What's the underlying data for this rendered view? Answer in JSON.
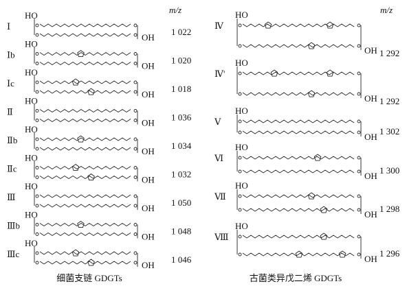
{
  "left": {
    "header": "m/z",
    "caption": "细菌支链 GDGTs",
    "items": [
      {
        "label": "Ⅰ",
        "ho": "HO",
        "oh": "OH",
        "mz": "1 022"
      },
      {
        "label": "Ⅰb",
        "ho": "HO",
        "oh": "OH",
        "mz": "1 020"
      },
      {
        "label": "Ⅰc",
        "ho": "HO",
        "oh": "OH",
        "mz": "1 018"
      },
      {
        "label": "Ⅱ",
        "ho": "HO",
        "oh": "OH",
        "mz": "1 036"
      },
      {
        "label": "Ⅱb",
        "ho": "HO",
        "oh": "OH",
        "mz": "1 034"
      },
      {
        "label": "Ⅱc",
        "ho": "HO",
        "oh": "OH",
        "mz": "1 032"
      },
      {
        "label": "Ⅲ",
        "ho": "HO",
        "oh": "OH",
        "mz": "1 050"
      },
      {
        "label": "Ⅲb",
        "ho": "HO",
        "oh": "OH",
        "mz": "1 048"
      },
      {
        "label": "Ⅲc",
        "ho": "HO",
        "oh": "OH",
        "mz": "1 046"
      }
    ]
  },
  "right": {
    "header": "m/z",
    "caption": "古菌类异戊二烯 GDGTs",
    "items": [
      {
        "label": "Ⅳ",
        "ho": "HO",
        "oh": "OH",
        "mz": "1 292"
      },
      {
        "label": "Ⅳ'",
        "ho": "HO",
        "oh": "OH",
        "mz": "1 292"
      },
      {
        "label": "Ⅴ",
        "ho": "HO",
        "oh": "OH",
        "mz": "1 302"
      },
      {
        "label": "Ⅵ",
        "ho": "HO",
        "oh": "OH",
        "mz": "1 300"
      },
      {
        "label": "Ⅶ",
        "ho": "HO",
        "oh": "OH",
        "mz": "1 298"
      },
      {
        "label": "Ⅷ",
        "ho": "HO",
        "oh": "OH",
        "mz": "1 296"
      }
    ]
  }
}
